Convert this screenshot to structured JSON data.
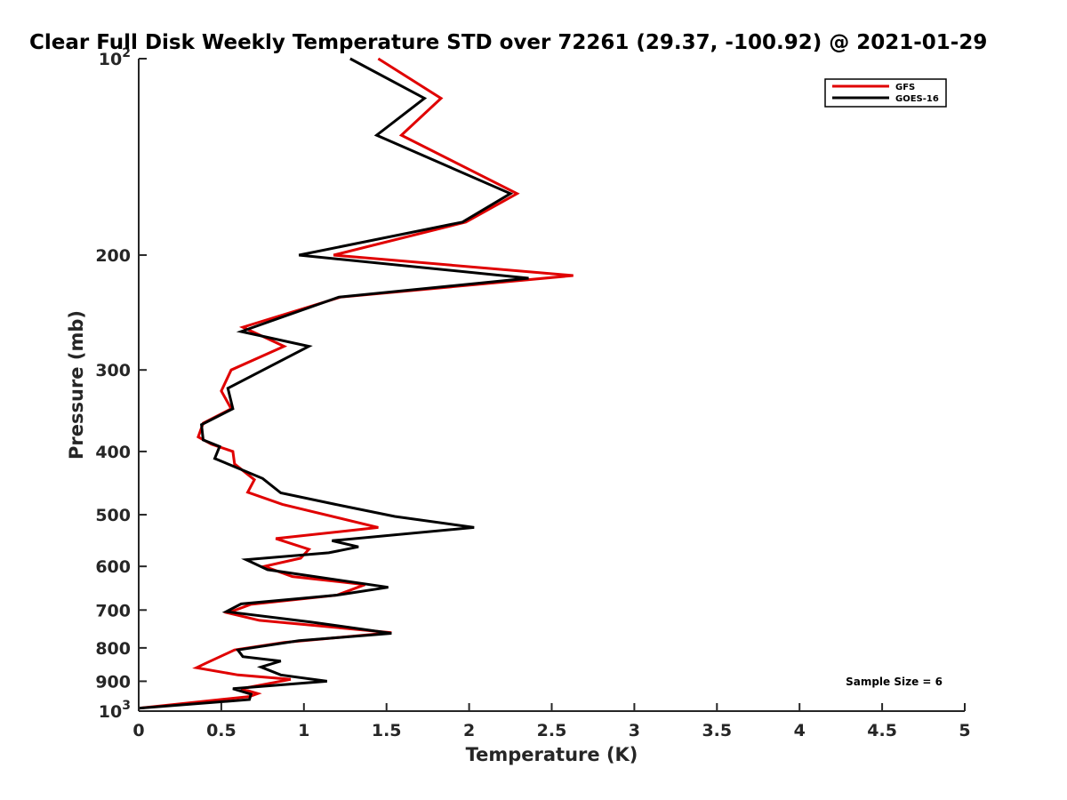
{
  "chart_data": {
    "type": "line",
    "title": "Clear Full Disk Weekly Temperature STD over 72261 (29.37, -100.92) @ 2021-01-29",
    "xlabel": "Temperature (K)",
    "ylabel": "Pressure (mb)",
    "xlim": [
      0,
      5
    ],
    "ylim": [
      100,
      1000
    ],
    "y_scale": "log",
    "y_reversed": true,
    "x_ticks": [
      {
        "value": 0,
        "label": "0"
      },
      {
        "value": 0.5,
        "label": "0.5"
      },
      {
        "value": 1,
        "label": "1"
      },
      {
        "value": 1.5,
        "label": "1.5"
      },
      {
        "value": 2,
        "label": "2"
      },
      {
        "value": 2.5,
        "label": "2.5"
      },
      {
        "value": 3,
        "label": "3"
      },
      {
        "value": 3.5,
        "label": "3.5"
      },
      {
        "value": 4,
        "label": "4"
      },
      {
        "value": 4.5,
        "label": "4.5"
      },
      {
        "value": 5,
        "label": "5"
      }
    ],
    "y_ticks": [
      {
        "value": 100,
        "base": "10",
        "exp": "2"
      },
      {
        "value": 200,
        "label": "200"
      },
      {
        "value": 300,
        "label": "300"
      },
      {
        "value": 400,
        "label": "400"
      },
      {
        "value": 500,
        "label": "500"
      },
      {
        "value": 600,
        "label": "600"
      },
      {
        "value": 700,
        "label": "700"
      },
      {
        "value": 800,
        "label": "800"
      },
      {
        "value": 900,
        "label": "900"
      },
      {
        "value": 1000,
        "base": "10",
        "exp": "3"
      }
    ],
    "grid": false,
    "legend_position": "top-right",
    "series": [
      {
        "name": "GFS",
        "color": "#e00000",
        "points": [
          [
            1.45,
            100
          ],
          [
            1.83,
            115
          ],
          [
            1.59,
            131
          ],
          [
            2.29,
            161
          ],
          [
            1.98,
            178
          ],
          [
            1.18,
            200
          ],
          [
            2.63,
            215
          ],
          [
            1.22,
            232
          ],
          [
            0.63,
            258
          ],
          [
            0.88,
            276
          ],
          [
            0.56,
            300
          ],
          [
            0.5,
            323
          ],
          [
            0.56,
            344
          ],
          [
            0.39,
            362
          ],
          [
            0.36,
            380
          ],
          [
            0.44,
            390
          ],
          [
            0.57,
            400
          ],
          [
            0.58,
            418
          ],
          [
            0.7,
            442
          ],
          [
            0.66,
            462
          ],
          [
            0.87,
            482
          ],
          [
            1.45,
            523
          ],
          [
            0.83,
            544
          ],
          [
            1.03,
            565
          ],
          [
            0.98,
            583
          ],
          [
            0.76,
            600
          ],
          [
            0.93,
            622
          ],
          [
            1.37,
            640
          ],
          [
            1.2,
            664
          ],
          [
            0.68,
            686
          ],
          [
            0.54,
            707
          ],
          [
            0.73,
            726
          ],
          [
            1.53,
            758
          ],
          [
            0.88,
            785
          ],
          [
            0.58,
            806
          ],
          [
            0.4,
            846
          ],
          [
            0.35,
            858
          ],
          [
            0.6,
            880
          ],
          [
            0.92,
            894
          ],
          [
            0.62,
            924
          ],
          [
            0.72,
            940
          ],
          [
            0.67,
            950
          ],
          [
            0.0,
            990
          ]
        ]
      },
      {
        "name": "GOES-16",
        "color": "#000000",
        "points": [
          [
            1.28,
            100
          ],
          [
            1.73,
            115
          ],
          [
            1.44,
            131
          ],
          [
            2.25,
            161
          ],
          [
            1.96,
            178
          ],
          [
            0.97,
            200
          ],
          [
            2.36,
            217
          ],
          [
            1.21,
            232
          ],
          [
            0.62,
            262
          ],
          [
            1.03,
            276
          ],
          [
            0.54,
            320
          ],
          [
            0.57,
            344
          ],
          [
            0.38,
            364
          ],
          [
            0.39,
            384
          ],
          [
            0.49,
            393
          ],
          [
            0.46,
            410
          ],
          [
            0.75,
            440
          ],
          [
            0.86,
            463
          ],
          [
            1.19,
            482
          ],
          [
            1.55,
            503
          ],
          [
            2.03,
            523
          ],
          [
            1.17,
            548
          ],
          [
            1.33,
            560
          ],
          [
            1.15,
            572
          ],
          [
            0.65,
            586
          ],
          [
            0.78,
            607
          ],
          [
            1.51,
            646
          ],
          [
            1.2,
            664
          ],
          [
            0.62,
            685
          ],
          [
            0.53,
            704
          ],
          [
            1.04,
            730
          ],
          [
            1.53,
            760
          ],
          [
            0.97,
            780
          ],
          [
            0.6,
            806
          ],
          [
            0.63,
            825
          ],
          [
            0.86,
            838
          ],
          [
            0.74,
            856
          ],
          [
            0.86,
            880
          ],
          [
            1.14,
            900
          ],
          [
            0.57,
            924
          ],
          [
            0.68,
            942
          ],
          [
            0.67,
            960
          ],
          [
            0.0,
            990
          ]
        ]
      }
    ],
    "annotations": [
      {
        "text": "Sample Size = 6"
      }
    ]
  }
}
